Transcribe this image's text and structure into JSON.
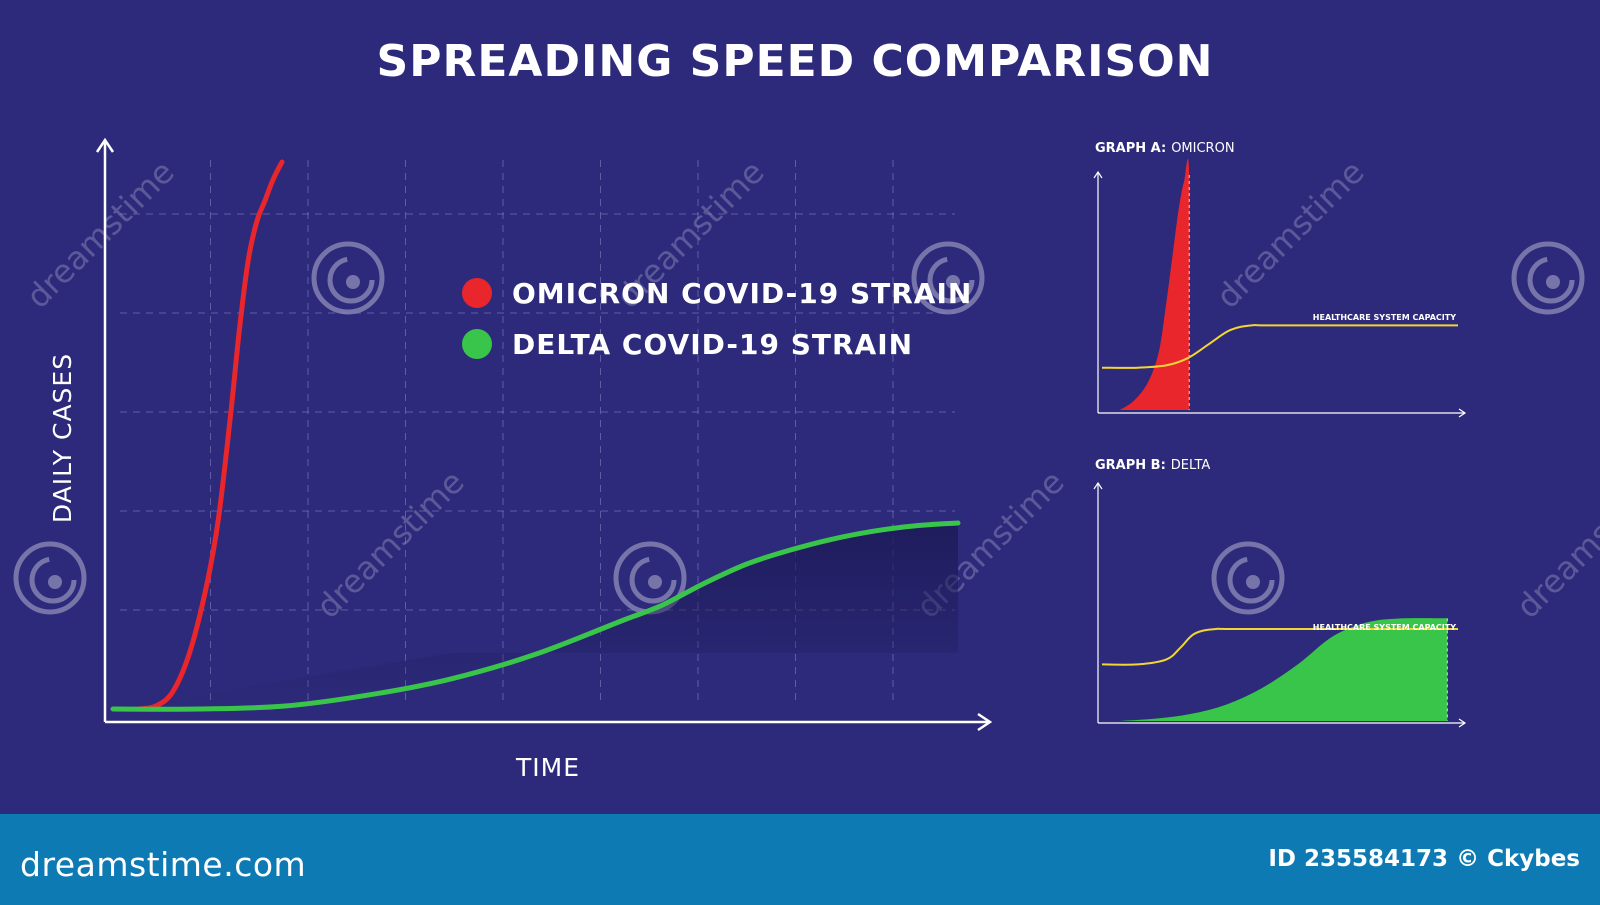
{
  "title": "SPREADING SPEED COMPARISON",
  "colors": {
    "background": "#2d2a7b",
    "omicron": "#e8262b",
    "delta": "#39c54a",
    "capacity": "#f1d634",
    "axis": "#ffffff",
    "footer": "#0e7ab4"
  },
  "main_chart": {
    "xlabel": "TIME",
    "ylabel": "DAILY CASES",
    "legend": [
      {
        "label": "OMICRON COVID-19 STRAIN",
        "color": "#e8262b"
      },
      {
        "label": "DELTA COVID-19 STRAIN",
        "color": "#39c54a"
      }
    ]
  },
  "graph_a": {
    "label_bold": "GRAPH A:",
    "label_name": "OMICRON",
    "capacity_label": "HEALTHCARE SYSTEM CAPACITY"
  },
  "graph_b": {
    "label_bold": "GRAPH B:",
    "label_name": "DELTA",
    "capacity_label": "HEALTHCARE SYSTEM CAPACITY"
  },
  "watermark": {
    "brand": "dreamstime",
    "site": "dreamstime.com",
    "id_text": "ID 235584173 © Ckybes"
  },
  "chart_data": [
    {
      "type": "line",
      "title": "",
      "xlabel": "TIME",
      "ylabel": "DAILY CASES",
      "xlim": [
        0,
        100
      ],
      "ylim": [
        0,
        100
      ],
      "grid": true,
      "legend_position": "center",
      "series": [
        {
          "name": "OMICRON COVID-19 STRAIN",
          "color": "#e8262b",
          "x": [
            3,
            5,
            7,
            9,
            11,
            12.5,
            14,
            15,
            16,
            17,
            18,
            19,
            20
          ],
          "y": [
            0,
            0.5,
            3,
            10,
            22,
            35,
            55,
            70,
            82,
            89,
            93,
            97,
            100
          ]
        },
        {
          "name": "DELTA COVID-19 STRAIN",
          "color": "#39c54a",
          "x": [
            0,
            10,
            20,
            30,
            40,
            50,
            60,
            65,
            70,
            75,
            80,
            85,
            90,
            95,
            100
          ],
          "y": [
            0,
            0,
            0.5,
            2.5,
            5.5,
            10,
            16,
            19,
            23,
            26.5,
            29,
            31,
            32.5,
            33.5,
            34
          ]
        }
      ]
    },
    {
      "type": "area",
      "title": "GRAPH A: OMICRON",
      "xlim": [
        0,
        100
      ],
      "ylim": [
        0,
        100
      ],
      "series": [
        {
          "name": "",
          "color": "#e8262b",
          "x": [
            5,
            9,
            13,
            16,
            18,
            20,
            21.5,
            23,
            24.5,
            24.5
          ],
          "y": [
            0,
            4,
            12,
            25,
            45,
            68,
            85,
            97,
            100,
            0
          ]
        },
        {
          "name": "HEALTHCARE SYSTEM CAPACITY",
          "color": "#f1d634",
          "x": [
            0,
            10,
            18,
            24,
            30,
            36,
            42,
            50,
            100
          ],
          "y": [
            18,
            18,
            19,
            22,
            28,
            34,
            36,
            36,
            36
          ]
        }
      ]
    },
    {
      "type": "area",
      "title": "GRAPH B: DELTA",
      "xlim": [
        0,
        100
      ],
      "ylim": [
        0,
        100
      ],
      "series": [
        {
          "name": "",
          "color": "#39c54a",
          "x": [
            5,
            15,
            25,
            35,
            45,
            55,
            65,
            75,
            85,
            97
          ],
          "y": [
            0,
            1,
            3,
            7,
            14,
            24,
            36,
            42,
            43.5,
            43.5
          ]
        },
        {
          "name": "HEALTHCARE SYSTEM CAPACITY",
          "color": "#f1d634",
          "x": [
            0,
            10,
            18,
            22,
            26,
            32,
            40,
            100
          ],
          "y": [
            24,
            24,
            26,
            31,
            37,
            39,
            39,
            39
          ]
        }
      ]
    }
  ]
}
